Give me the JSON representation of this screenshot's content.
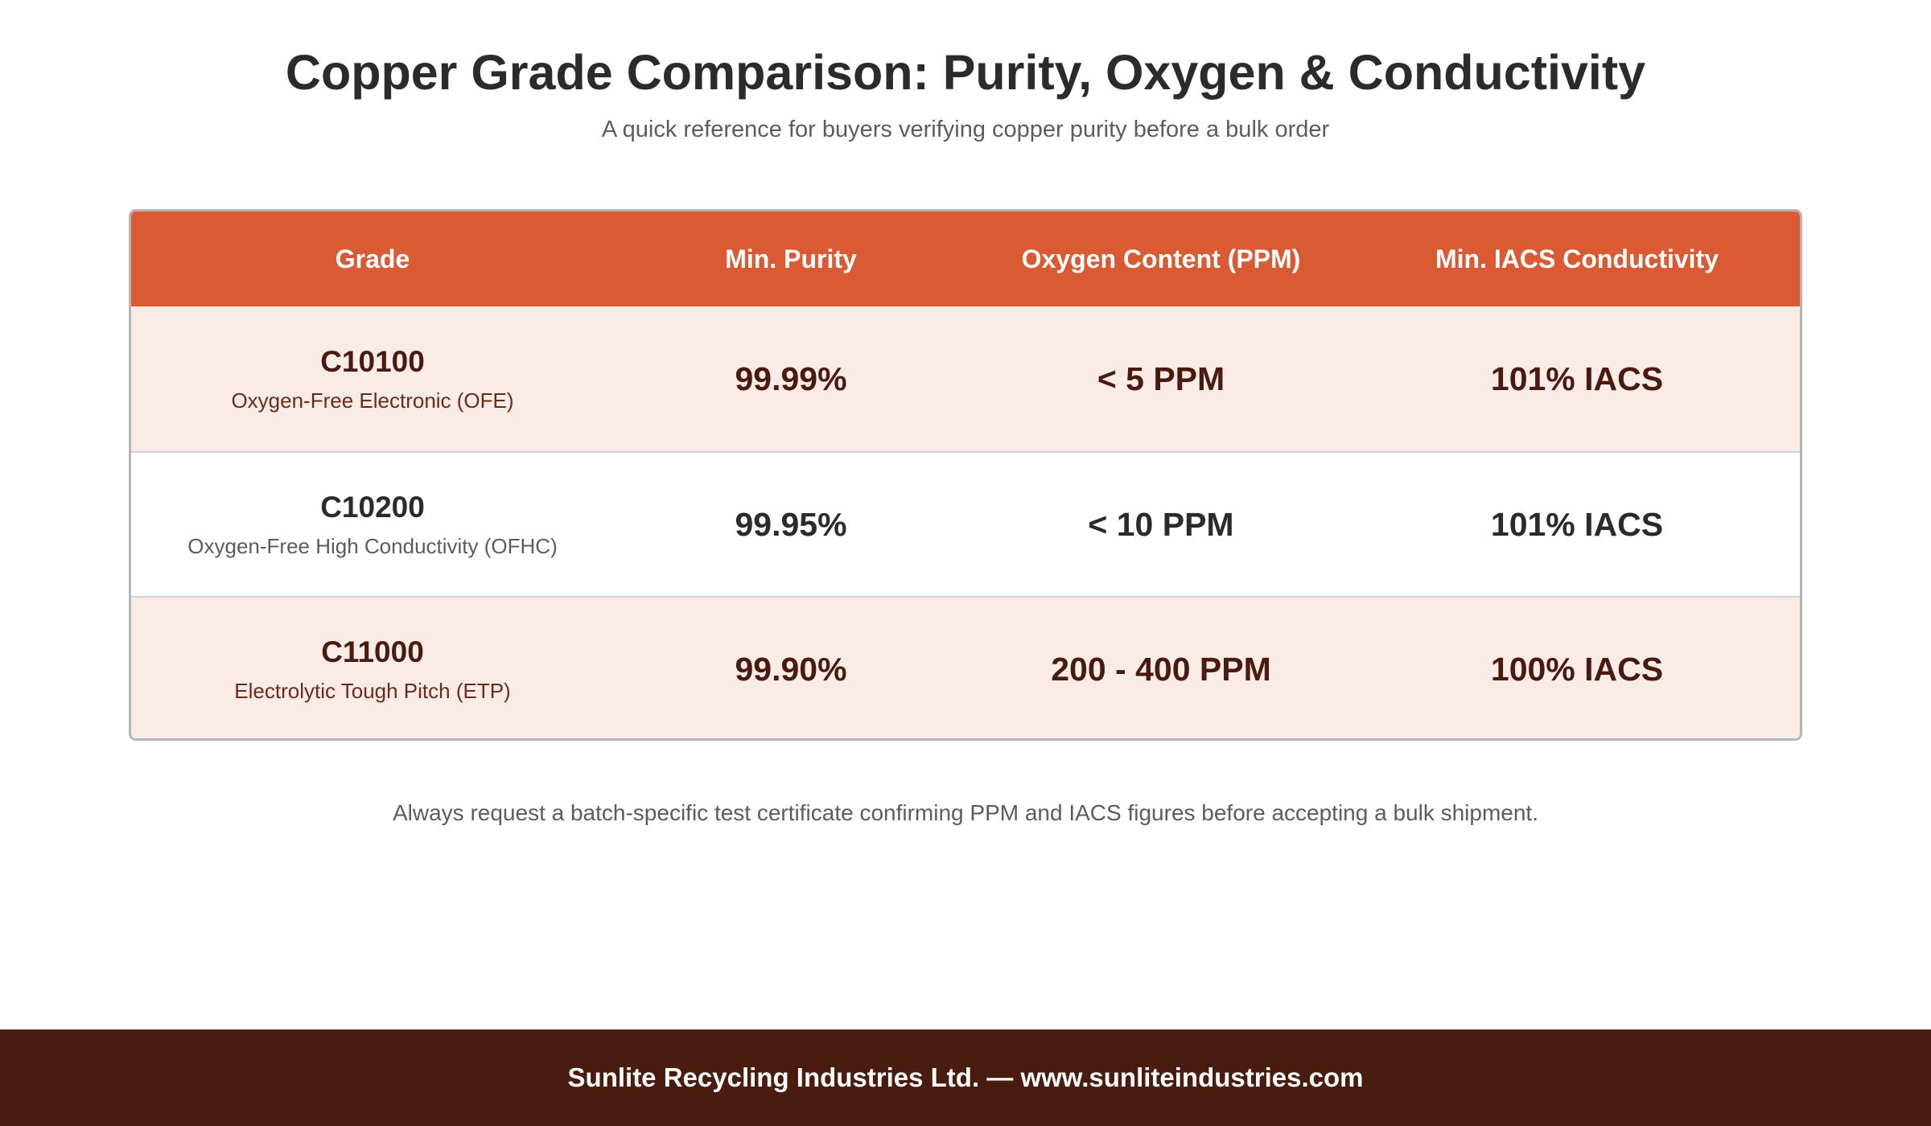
{
  "header": {
    "title": "Copper Grade Comparison: Purity, Oxygen & Conductivity",
    "subtitle": "A quick reference for buyers verifying copper purity before a bulk order"
  },
  "table": {
    "columns": [
      "Grade",
      "Min. Purity",
      "Oxygen Content (PPM)",
      "Min. IACS Conductivity"
    ],
    "rows": [
      {
        "code": "C10100",
        "name": "Oxygen-Free Electronic (OFE)",
        "purity": "99.99%",
        "oxygen": "< 5 PPM",
        "conductivity": "101% IACS"
      },
      {
        "code": "C10200",
        "name": "Oxygen-Free High Conductivity (OFHC)",
        "purity": "99.95%",
        "oxygen": "< 10 PPM",
        "conductivity": "101% IACS"
      },
      {
        "code": "C11000",
        "name": "Electrolytic Tough Pitch (ETP)",
        "purity": "99.90%",
        "oxygen": "200 - 400 PPM",
        "conductivity": "100% IACS"
      }
    ]
  },
  "note": "Always request a batch-specific test certificate confirming PPM and IACS figures before accepting a bulk shipment.",
  "footer": {
    "text": "Sunlite Recycling Industries Ltd. — www.sunliteindustries.com"
  },
  "colors": {
    "header_bg": "#d95a33",
    "alt_row_bg": "#f9ebe6",
    "footer_bg": "#4a1b0f"
  }
}
